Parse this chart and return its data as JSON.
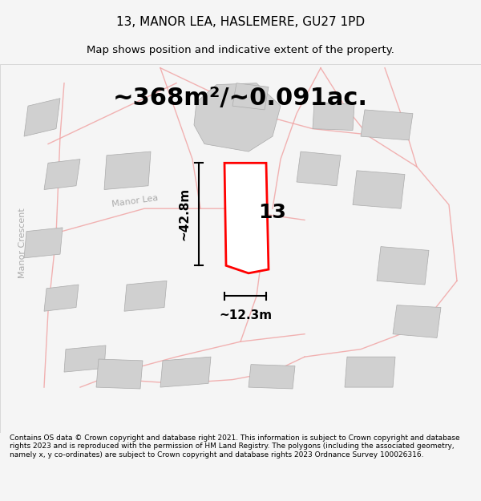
{
  "title": "13, MANOR LEA, HASLEMERE, GU27 1PD",
  "subtitle": "Map shows position and indicative extent of the property.",
  "area_text": "~368m²/~0.091ac.",
  "number_label": "13",
  "dim_vertical": "~42.8m",
  "dim_horizontal": "~12.3m",
  "footer": "Contains OS data © Crown copyright and database right 2021. This information is subject to Crown copyright and database rights 2023 and is reproduced with the permission of HM Land Registry. The polygons (including the associated geometry, namely x, y co-ordinates) are subject to Crown copyright and database rights 2023 Ordnance Survey 100026316.",
  "bg_color": "#f5f5f5",
  "map_bg": "#ffffff",
  "road_color": "#f0a0a0",
  "building_color": "#d0d0d0",
  "plot_color": "#ff0000",
  "dim_color": "#000000",
  "title_color": "#000000",
  "footer_color": "#000000"
}
